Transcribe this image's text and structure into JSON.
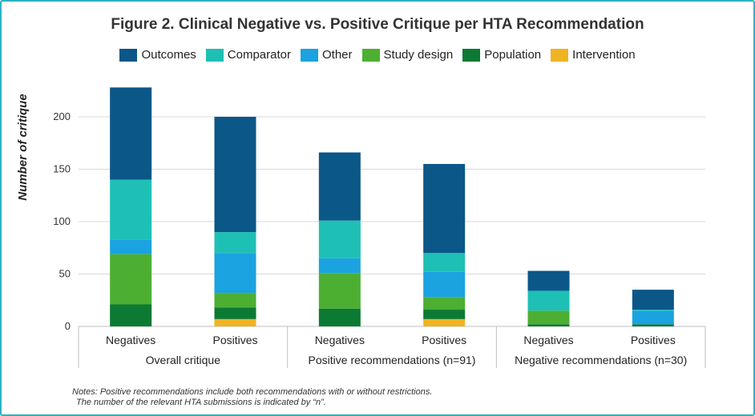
{
  "chart_data": {
    "type": "bar",
    "stacked": true,
    "title": "Figure 2. Clinical Negative vs. Positive Critique per HTA Recommendation",
    "ylabel": "Number of critique",
    "ylim": [
      0,
      230
    ],
    "yticks": [
      0,
      50,
      100,
      150,
      200
    ],
    "grid": true,
    "legend_position": "top",
    "groups": [
      {
        "label": "Overall critique",
        "bars": [
          "Negatives",
          "Positives"
        ]
      },
      {
        "label": "Positive recommendations (n=91)",
        "bars": [
          "Negatives",
          "Positives"
        ]
      },
      {
        "label": "Negative recommendations (n=30)",
        "bars": [
          "Negatives",
          "Positives"
        ]
      }
    ],
    "categories": [
      "Negatives",
      "Positives",
      "Negatives",
      "Positives",
      "Negatives",
      "Positives"
    ],
    "series": [
      {
        "name": "Intervention",
        "color": "#f0b323",
        "values": [
          0,
          7,
          0,
          7,
          0,
          0
        ]
      },
      {
        "name": "Population",
        "color": "#0c7a33",
        "values": [
          21,
          11,
          17,
          9,
          2,
          2
        ]
      },
      {
        "name": "Study design",
        "color": "#4caf32",
        "values": [
          48,
          14,
          34,
          12,
          13,
          0
        ]
      },
      {
        "name": "Other",
        "color": "#1aa3e0",
        "values": [
          14,
          38,
          14,
          24,
          0,
          13
        ]
      },
      {
        "name": "Comparator",
        "color": "#1ec0b5",
        "values": [
          57,
          20,
          36,
          18,
          19,
          1
        ]
      },
      {
        "name": "Outcomes",
        "color": "#0b5788",
        "values": [
          88,
          110,
          65,
          85,
          19,
          19
        ]
      }
    ]
  },
  "legend": {
    "items": [
      {
        "name": "Outcomes",
        "color": "#0b5788"
      },
      {
        "name": "Comparator",
        "color": "#1ec0b5"
      },
      {
        "name": "Other",
        "color": "#1aa3e0"
      },
      {
        "name": "Study design",
        "color": "#4caf32"
      },
      {
        "name": "Population",
        "color": "#0c7a33"
      },
      {
        "name": "Intervention",
        "color": "#f0b323"
      }
    ]
  },
  "notes": {
    "line1": "Notes: Positive recommendations include both recommendations with or without restrictions.",
    "line2": "The number of the relevant HTA submissions is indicated by “n”."
  }
}
